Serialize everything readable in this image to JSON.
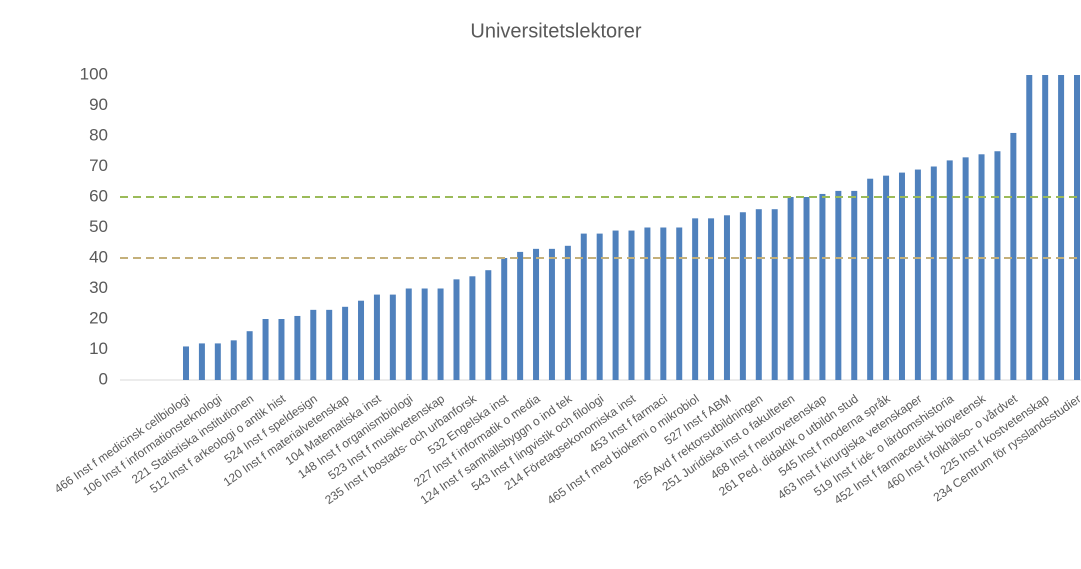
{
  "chart_data": {
    "type": "bar",
    "title": "Universitetslektorer",
    "categories": [
      "466 Inst f medicinsk cellbiologi",
      null,
      "106 Inst f informationsteknologi",
      null,
      "221 Statistiska institutionen",
      null,
      "512 Inst f arkeologi o antik hist",
      null,
      "524 Inst f speldesign",
      null,
      "120 Inst f materialvetenskap",
      null,
      "104 Matematiska inst",
      null,
      "148 Inst f organismbiologi",
      null,
      "523 Inst f musikvetenskap",
      null,
      "235 Inst f bostads- och urbanforsk",
      null,
      "532 Engelska inst",
      null,
      "227 Inst f informatik o media",
      null,
      "124 Inst f samhällsbyggn o ind tek",
      null,
      "543 Inst f lingvistik och filologi",
      null,
      "214 Företagsekonomiska inst",
      null,
      "453 Inst f farmaci",
      null,
      "465 Inst f med biokemi o mikrobiol",
      null,
      "527 Inst f ABM",
      null,
      "265 Avd f rektorsutbildningen",
      null,
      "251 Juridiska inst o fakulteten",
      null,
      "468 Inst f neurovetenskap",
      null,
      "261 Ped, didaktik o utbildn stud",
      null,
      "545 Inst f moderna språk",
      null,
      "463 Inst f kirurgiska vetenskaper",
      null,
      "519 Inst f idé- o lärdomshistoria",
      null,
      "452 Inst f farmaceutisk biovetensk",
      null,
      "460 Inst f folkhälso- o vårdvet",
      null,
      "225 Inst f kostvetenskap",
      null,
      "234 Centrum för rysslandsstudier"
    ],
    "values": [
      11,
      12,
      12,
      13,
      16,
      20,
      20,
      21,
      23,
      23,
      24,
      26,
      28,
      28,
      30,
      30,
      30,
      33,
      34,
      36,
      40,
      42,
      43,
      43,
      44,
      48,
      48,
      49,
      49,
      50,
      50,
      50,
      53,
      53,
      54,
      55,
      56,
      56,
      60,
      60,
      61,
      62,
      62,
      66,
      67,
      68,
      69,
      70,
      72,
      73,
      74,
      75,
      81,
      100,
      100,
      100,
      100
    ],
    "color": "#4f81bd",
    "ylim": [
      0,
      100
    ],
    "yticks": [
      0,
      10,
      20,
      30,
      40,
      50,
      60,
      70,
      80,
      90,
      100
    ],
    "grid": false,
    "reference_lines": [
      {
        "value": 60,
        "color": "#9bbb59"
      },
      {
        "value": 40,
        "color": "#c4b07a"
      }
    ]
  }
}
